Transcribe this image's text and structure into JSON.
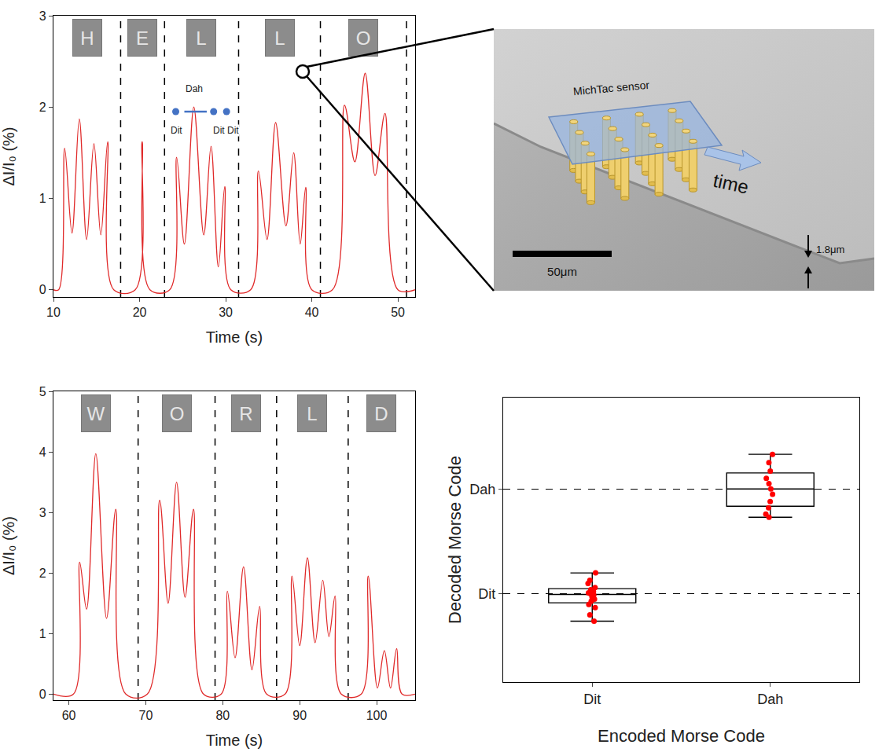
{
  "chart_data": [
    {
      "type": "line",
      "x_label": "Time (s)",
      "y_label": "ΔI/I₀ (%)",
      "color": "#e02a2a",
      "line_style": "smooth",
      "x": [
        10,
        10.6,
        11.3,
        12.15,
        13.0,
        13.85,
        14.7,
        15.5,
        16.3,
        17.0,
        19.5,
        20.3,
        21.2,
        23.5,
        24.3,
        25.2,
        26.3,
        27.45,
        28.3,
        29.15,
        29.9,
        30.6,
        32.9,
        33.8,
        34.8,
        35.8,
        37.0,
        37.9,
        38.65,
        39.3,
        40.0,
        42.4,
        43.8,
        45.0,
        46.2,
        47.35,
        48.5,
        50.0,
        52
      ],
      "values": [
        0,
        0,
        1.55,
        0.62,
        1.87,
        0.55,
        1.6,
        0.6,
        1.62,
        0,
        0,
        1.62,
        0,
        0,
        1.45,
        0.5,
        2.0,
        0.6,
        1.57,
        0.25,
        1.13,
        0,
        0,
        1.3,
        0.55,
        1.83,
        0.7,
        1.5,
        0.5,
        1.12,
        0,
        0,
        2.02,
        1.4,
        2.37,
        1.25,
        1.93,
        0,
        0
      ],
      "xlim": [
        10,
        52
      ],
      "ylim": [
        -0.08,
        3
      ],
      "xticks": [
        10,
        20,
        30,
        40,
        50
      ],
      "yticks": [
        0,
        1,
        2,
        3
      ],
      "dividers": [
        17.8,
        22.9,
        31.5,
        41,
        51
      ],
      "segment_labels": [
        "H",
        "E",
        "L",
        "L",
        "O"
      ],
      "morse": {
        "color": "#4472c4",
        "y": 1.95,
        "dit_x": [
          24.2,
          28.6,
          30.1
        ],
        "dah_x": [
          25.2,
          27.8
        ],
        "labels": [
          {
            "text": "Dah",
            "x": 26.3,
            "y": 2.2
          },
          {
            "text": "Dit",
            "x": 24.3,
            "y": 1.74
          },
          {
            "text": "Dit Dit",
            "x": 30.0,
            "y": 1.74
          }
        ]
      }
    },
    {
      "type": "line",
      "x_label": "Time (s)",
      "y_label": "ΔI/I₀ (%)",
      "color": "#e02a2a",
      "line_style": "smooth",
      "x": [
        58,
        60.6,
        61.4,
        62.3,
        63.5,
        64.9,
        66.1,
        67.4,
        70.2,
        71.8,
        72.9,
        74.0,
        75.1,
        76.2,
        77.5,
        79.8,
        80.6,
        81.6,
        82.7,
        83.8,
        84.8,
        85.7,
        88.1,
        89.0,
        90.0,
        91.0,
        92.0,
        93.0,
        93.8,
        94.6,
        95.4,
        98.0,
        98.9,
        100.1,
        101.0,
        101.8,
        102.6,
        103.3,
        105
      ],
      "values": [
        0,
        0,
        2.18,
        1.4,
        3.97,
        1.25,
        3.05,
        0,
        0,
        3.2,
        1.5,
        3.5,
        1.6,
        3.05,
        0,
        0,
        1.7,
        0.6,
        2.1,
        0.4,
        1.45,
        0,
        0,
        1.95,
        0.8,
        2.25,
        0.85,
        1.88,
        0.95,
        1.62,
        0,
        0,
        1.95,
        0.1,
        0.72,
        0.1,
        0.75,
        0,
        0
      ],
      "xlim": [
        58,
        105
      ],
      "ylim": [
        -0.1,
        5
      ],
      "xticks": [
        60,
        70,
        80,
        90,
        100
      ],
      "yticks": [
        0,
        1,
        2,
        3,
        4,
        5
      ],
      "dividers": [
        69,
        79,
        87,
        96.3
      ],
      "segment_labels": [
        "W",
        "O",
        "R",
        "L",
        "D"
      ]
    },
    {
      "type": "box",
      "x_label": "Encoded Morse Code",
      "y_label": "Decoded Morse Code",
      "color": "#ff0000",
      "grid": true,
      "categories": [
        "Dit",
        "Dah"
      ],
      "values": [
        [
          0.74,
          0.8,
          0.87,
          0.9,
          0.93,
          0.95,
          0.97,
          0.99,
          1.0,
          1.01,
          1.02,
          1.04,
          1.06,
          1.1,
          1.13,
          1.2
        ],
        [
          1.73,
          1.76,
          1.82,
          1.88,
          1.95,
          2.0,
          2.05,
          2.1,
          2.17,
          2.25,
          2.33
        ]
      ],
      "ylim": [
        0.16,
        2.87
      ],
      "yticks": [
        {
          "value": 1,
          "label": "Dit"
        },
        {
          "value": 2,
          "label": "Dah"
        }
      ]
    }
  ],
  "inset": {
    "sensor_label": "MichTac sensor",
    "arrow_label": "time",
    "scale_bar": "50μm",
    "thickness": "1.8μm"
  }
}
